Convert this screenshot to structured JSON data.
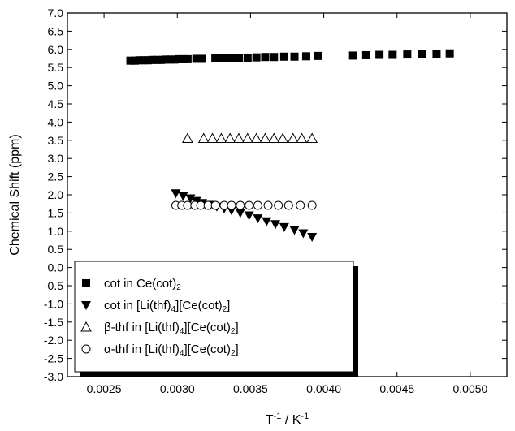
{
  "chart_data": {
    "type": "scatter",
    "xlabel": "T⁻¹ / K⁻¹",
    "ylabel": "Chemical Shift (ppm)",
    "xlim": [
      0.00225,
      0.00525
    ],
    "ylim": [
      -3.0,
      7.0
    ],
    "x_ticks": [
      0.0025,
      0.003,
      0.0035,
      0.004,
      0.0045,
      0.005
    ],
    "x_tick_labels": [
      "0.0025",
      "0.0030",
      "0.0035",
      "0.0040",
      "0.0045",
      "0.0050"
    ],
    "y_ticks": [
      -3.0,
      -2.5,
      -2.0,
      -1.5,
      -1.0,
      -0.5,
      0.0,
      0.5,
      1.0,
      1.5,
      2.0,
      2.5,
      3.0,
      3.5,
      4.0,
      4.5,
      5.0,
      5.5,
      6.0,
      6.5,
      7.0
    ],
    "y_tick_labels": [
      "-3.0",
      "-2.5",
      "-2.0",
      "-1.5",
      "-1.0",
      "-0.5",
      "0.0",
      "0.5",
      "1.0",
      "1.5",
      "2.0",
      "2.5",
      "3.0",
      "3.5",
      "4.0",
      "4.5",
      "5.0",
      "5.5",
      "6.0",
      "6.5",
      "7.0"
    ],
    "grid": false,
    "legend_position": "bottom-left",
    "series": [
      {
        "name": "cot in Ce(cot)",
        "name_sub": "2",
        "marker": "filled-square",
        "color": "#000000",
        "x": [
          0.00268,
          0.00271,
          0.00274,
          0.00277,
          0.0028,
          0.00283,
          0.00286,
          0.00289,
          0.00292,
          0.00295,
          0.00298,
          0.00301,
          0.00304,
          0.00307,
          0.00313,
          0.00317,
          0.00326,
          0.00331,
          0.00337,
          0.00342,
          0.00348,
          0.00354,
          0.0036,
          0.00366,
          0.00373,
          0.0038,
          0.00388,
          0.00396,
          0.0042,
          0.00429,
          0.00438,
          0.00447,
          0.00457,
          0.00467,
          0.00477,
          0.00486
        ],
        "y": [
          5.69,
          5.69,
          5.7,
          5.7,
          5.7,
          5.71,
          5.71,
          5.71,
          5.72,
          5.72,
          5.72,
          5.73,
          5.73,
          5.73,
          5.74,
          5.74,
          5.75,
          5.76,
          5.76,
          5.77,
          5.77,
          5.78,
          5.79,
          5.79,
          5.8,
          5.8,
          5.81,
          5.82,
          5.83,
          5.84,
          5.85,
          5.85,
          5.86,
          5.87,
          5.88,
          5.89
        ]
      },
      {
        "name": "cot in [Li(thf)",
        "name_sub": "4",
        "name_mid": "][Ce(cot)",
        "name_sub2": "2",
        "name_end": "]",
        "marker": "filled-triangle-down",
        "color": "#000000",
        "x": [
          0.00299,
          0.00304,
          0.00309,
          0.00313,
          0.00317,
          0.00322,
          0.00327,
          0.00332,
          0.00337,
          0.00343,
          0.00349,
          0.00355,
          0.00361,
          0.00367,
          0.00373,
          0.0038,
          0.00386,
          0.00392
        ],
        "y": [
          2.04,
          1.96,
          1.9,
          1.83,
          1.77,
          1.72,
          1.67,
          1.62,
          1.57,
          1.5,
          1.43,
          1.35,
          1.27,
          1.19,
          1.11,
          1.03,
          0.94,
          0.84
        ]
      },
      {
        "name": "β-thf in [Li(thf)",
        "name_sub": "4",
        "name_mid": "][Ce(cot)",
        "name_sub2": "2",
        "name_end": "]",
        "marker": "open-triangle-up",
        "color": "#000000",
        "x": [
          0.00307,
          0.00318,
          0.00324,
          0.0033,
          0.00336,
          0.00342,
          0.00348,
          0.00354,
          0.0036,
          0.00366,
          0.00372,
          0.00379,
          0.00385,
          0.00392
        ],
        "y": [
          3.55,
          3.55,
          3.55,
          3.55,
          3.55,
          3.55,
          3.55,
          3.55,
          3.55,
          3.55,
          3.55,
          3.55,
          3.55,
          3.55
        ]
      },
      {
        "name": "α-thf in [Li(thf)",
        "name_sub": "4",
        "name_mid": "][Ce(cot)",
        "name_sub2": "2",
        "name_end": "]",
        "marker": "open-circle",
        "color": "#000000",
        "x": [
          0.00299,
          0.00303,
          0.00307,
          0.00312,
          0.00316,
          0.00321,
          0.00326,
          0.00332,
          0.00337,
          0.00343,
          0.00349,
          0.00355,
          0.00362,
          0.00369,
          0.00376,
          0.00384,
          0.00392
        ],
        "y": [
          1.71,
          1.71,
          1.71,
          1.71,
          1.71,
          1.71,
          1.71,
          1.71,
          1.71,
          1.71,
          1.71,
          1.71,
          1.71,
          1.71,
          1.71,
          1.71,
          1.71
        ]
      }
    ]
  }
}
